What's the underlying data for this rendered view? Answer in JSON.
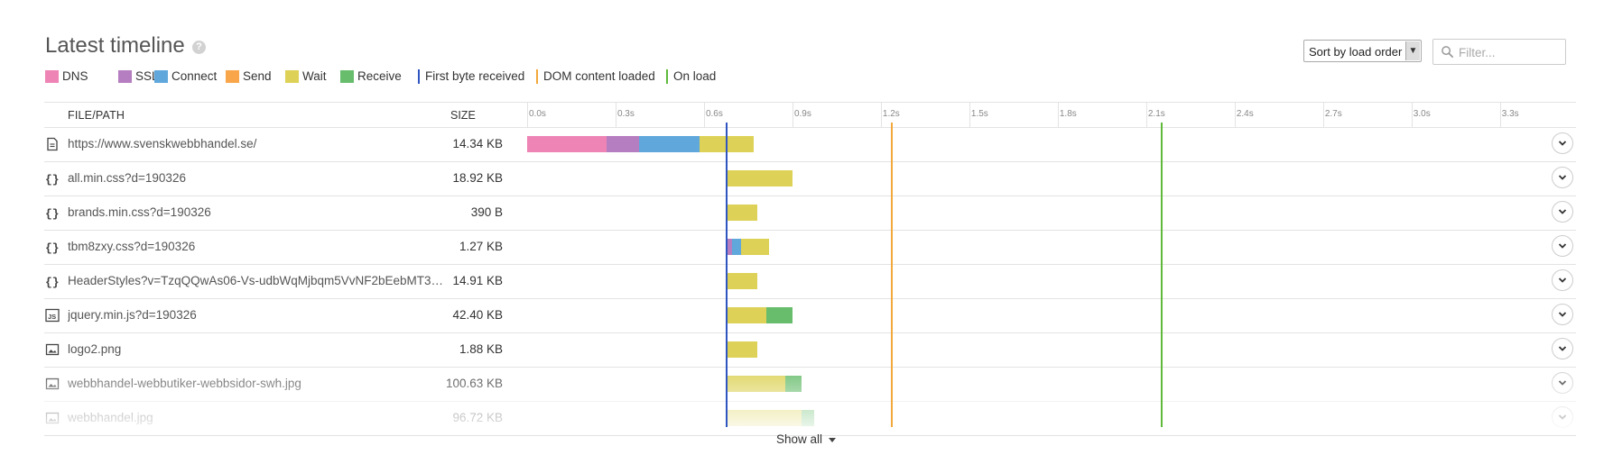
{
  "header": {
    "title": "Latest timeline",
    "help_icon": "?",
    "sort_select": {
      "value": "Sort by load order",
      "icon": "chevron-down-icon"
    },
    "filter": {
      "placeholder": "Filter...",
      "icon": "search-icon"
    }
  },
  "legend": [
    {
      "label": "DNS",
      "kind": "swatch",
      "color": "#ee84b5"
    },
    {
      "label": "SSL",
      "kind": "swatch",
      "color": "#b57ec0"
    },
    {
      "label": "Connect",
      "kind": "swatch",
      "color": "#60a8dc"
    },
    {
      "label": "Send",
      "kind": "swatch",
      "color": "#f9a54a"
    },
    {
      "label": "Wait",
      "kind": "swatch",
      "color": "#ddd257"
    },
    {
      "label": "Receive",
      "kind": "swatch",
      "color": "#68bd6d"
    },
    {
      "label": "First byte received",
      "kind": "line",
      "color": "#2e55c0"
    },
    {
      "label": "DOM content loaded",
      "kind": "line",
      "color": "#f2a83b"
    },
    {
      "label": "On load",
      "kind": "line",
      "color": "#5fba3a"
    }
  ],
  "table": {
    "columns": {
      "file": "FILE/PATH",
      "size": "SIZE"
    },
    "time_axis": {
      "ticks": [
        "0.0s",
        "0.3s",
        "0.6s",
        "0.9s",
        "1.2s",
        "1.5s",
        "1.8s",
        "2.1s",
        "2.4s",
        "2.7s",
        "3.0s",
        "3.3s"
      ],
      "tick_values": [
        0,
        0.3,
        0.6,
        0.9,
        1.2,
        1.5,
        1.8,
        2.1,
        2.4,
        2.7,
        3.0,
        3.3
      ]
    },
    "markers": {
      "first_byte_s": 0.675,
      "dom_content_loaded_s": 1.235,
      "on_load_s": 2.15
    },
    "rows": [
      {
        "path": "https://www.svenskwebbhandel.se/",
        "size": "14.34 KB",
        "icon": "document-icon",
        "phases": [
          {
            "type": "DNS",
            "start": 0.0,
            "end": 0.27
          },
          {
            "type": "SSL",
            "start": 0.27,
            "end": 0.38
          },
          {
            "type": "Connect",
            "start": 0.38,
            "end": 0.585
          },
          {
            "type": "Wait",
            "start": 0.585,
            "end": 0.77
          }
        ]
      },
      {
        "path": "all.min.css?d=190326",
        "size": "18.92 KB",
        "icon": "css-icon",
        "phases": [
          {
            "type": "Wait",
            "start": 0.675,
            "end": 0.9
          }
        ]
      },
      {
        "path": "brands.min.css?d=190326",
        "size": "390 B",
        "icon": "css-icon",
        "phases": [
          {
            "type": "Wait",
            "start": 0.675,
            "end": 0.78
          }
        ]
      },
      {
        "path": "tbm8zxy.css?d=190326",
        "size": "1.27 KB",
        "icon": "css-icon",
        "phases": [
          {
            "type": "SSL",
            "start": 0.675,
            "end": 0.695
          },
          {
            "type": "Connect",
            "start": 0.695,
            "end": 0.725
          },
          {
            "type": "Wait",
            "start": 0.725,
            "end": 0.82
          }
        ]
      },
      {
        "path": "HeaderStyles?v=TzqQQwAs06-Vs-udbWqMjbqm5VvNF2bEebMT3Ok…",
        "size": "14.91 KB",
        "icon": "css-icon",
        "phases": [
          {
            "type": "Wait",
            "start": 0.675,
            "end": 0.78
          }
        ]
      },
      {
        "path": "jquery.min.js?d=190326",
        "size": "42.40 KB",
        "icon": "javascript-icon",
        "phases": [
          {
            "type": "Wait",
            "start": 0.675,
            "end": 0.81
          },
          {
            "type": "Receive",
            "start": 0.81,
            "end": 0.9
          }
        ]
      },
      {
        "path": "logo2.png",
        "size": "1.88 KB",
        "icon": "image-icon",
        "phases": [
          {
            "type": "Wait",
            "start": 0.675,
            "end": 0.78
          }
        ]
      },
      {
        "path": "webbhandel-webbutiker-webbsidor-swh.jpg",
        "size": "100.63 KB",
        "icon": "image-icon",
        "phases": [
          {
            "type": "Wait",
            "start": 0.675,
            "end": 0.875
          },
          {
            "type": "Receive",
            "start": 0.875,
            "end": 0.93
          }
        ]
      },
      {
        "path": "webbhandel.jpg",
        "size": "96.72 KB",
        "icon": "image-icon",
        "phases": [
          {
            "type": "Wait",
            "start": 0.675,
            "end": 0.93
          },
          {
            "type": "Receive",
            "start": 0.93,
            "end": 0.975
          }
        ]
      }
    ]
  },
  "footer": {
    "show_all": "Show all"
  }
}
